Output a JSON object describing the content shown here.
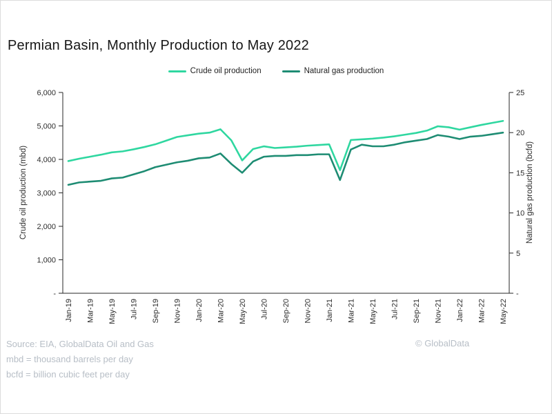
{
  "header": {
    "title": "Permian Basin, Monthly Production to May 2022"
  },
  "legend": [
    {
      "label": "Crude oil production",
      "color": "#2fd7a0"
    },
    {
      "label": "Natural gas production",
      "color": "#1e8c73"
    }
  ],
  "chart_data": {
    "type": "line",
    "title": "Permian Basin, Monthly Production to May 2022",
    "grid": false,
    "legend_position": "top",
    "x": [
      "Jan-19",
      "Feb-19",
      "Mar-19",
      "Apr-19",
      "May-19",
      "Jun-19",
      "Jul-19",
      "Aug-19",
      "Sep-19",
      "Oct-19",
      "Nov-19",
      "Dec-19",
      "Jan-20",
      "Feb-20",
      "Mar-20",
      "Apr-20",
      "May-20",
      "Jun-20",
      "Jul-20",
      "Aug-20",
      "Sep-20",
      "Oct-20",
      "Nov-20",
      "Dec-20",
      "Jan-21",
      "Feb-21",
      "Mar-21",
      "Apr-21",
      "May-21",
      "Jun-21",
      "Jul-21",
      "Aug-21",
      "Sep-21",
      "Oct-21",
      "Nov-21",
      "Dec-21",
      "Jan-22",
      "Feb-22",
      "Mar-22",
      "Apr-22",
      "May-22"
    ],
    "x_tick_step": 2,
    "series": [
      {
        "name": "Crude oil production",
        "axis": "left",
        "color": "#2fd7a0",
        "values": [
          3950,
          4020,
          4080,
          4140,
          4210,
          4240,
          4300,
          4370,
          4450,
          4560,
          4670,
          4720,
          4770,
          4800,
          4900,
          4570,
          3970,
          4310,
          4390,
          4340,
          4360,
          4380,
          4410,
          4430,
          4450,
          3680,
          4580,
          4600,
          4620,
          4650,
          4690,
          4740,
          4790,
          4860,
          4990,
          4960,
          4890,
          4960,
          5030,
          5090,
          5150
        ]
      },
      {
        "name": "Natural gas production",
        "axis": "right",
        "color": "#1e8c73",
        "values": [
          13.5,
          13.8,
          13.9,
          14.0,
          14.3,
          14.4,
          14.8,
          15.2,
          15.7,
          16.0,
          16.3,
          16.5,
          16.8,
          16.9,
          17.4,
          16.1,
          15.0,
          16.4,
          17.0,
          17.1,
          17.1,
          17.2,
          17.2,
          17.3,
          17.3,
          14.1,
          17.9,
          18.5,
          18.3,
          18.3,
          18.5,
          18.8,
          19.0,
          19.2,
          19.7,
          19.5,
          19.2,
          19.5,
          19.6,
          19.8,
          20.0
        ]
      }
    ],
    "left_axis": {
      "label": "Crude oil production (mbd)",
      "min": 0,
      "max": 6000,
      "tick_values": [
        6000,
        5000,
        4000,
        3000,
        2000,
        1000,
        0
      ],
      "tick_labels": [
        "6,000",
        "5,000",
        "4,000",
        "3,000",
        "2,000",
        "1,000",
        "-"
      ]
    },
    "right_axis": {
      "label": "Natural gas production (bcfd)",
      "min": 0,
      "max": 25,
      "tick_values": [
        25,
        20,
        15,
        10,
        5,
        0
      ],
      "tick_labels": [
        "25",
        "20",
        "15",
        "10",
        "5",
        "-"
      ]
    }
  },
  "footer": {
    "source": "Source: EIA, GlobalData Oil and Gas",
    "note1": "mbd = thousand barrels per day",
    "note2": "bcfd = billion cubic feet per day",
    "copyright": "© GlobalData"
  }
}
